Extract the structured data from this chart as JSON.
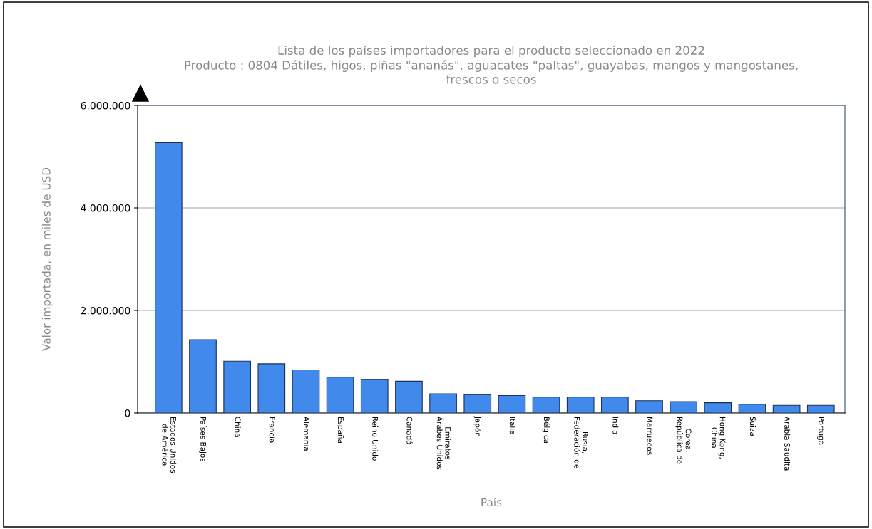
{
  "chart_data": {
    "type": "bar",
    "title": "Lista de los países importadores para el producto seleccionado en 2022\nProducto : 0804 Dátiles, higos, piñas \"ananás\", aguacates \"paltas\", guayabas, mangos y mangostanes,\nfrescos o secos",
    "xlabel": "País",
    "ylabel": "Valor importada, en miles de USD",
    "categories": [
      "Estados Unidos\nde América",
      "Países Bajos",
      "China",
      "Francia",
      "Alemania",
      "España",
      "Reino Unido",
      "Canadá",
      "Emiratos\nÁrabes Unidos",
      "Japón",
      "Italia",
      "Bélgica",
      "Rusia,\nFederación de",
      "India",
      "Marruecos",
      "Corea,\nRepública de",
      "Hong Kong,\nChina",
      "Suiza",
      "Arabia Saudita",
      "Portugal"
    ],
    "values": [
      5270000,
      1430000,
      1010000,
      960000,
      840000,
      700000,
      650000,
      620000,
      375000,
      360000,
      340000,
      310000,
      310000,
      310000,
      240000,
      220000,
      200000,
      170000,
      150000,
      150000
    ],
    "color": "#418aec",
    "ylim": [
      0,
      6000000
    ],
    "yticks": [
      {
        "value": 0,
        "label": "0"
      },
      {
        "value": 2000000,
        "label": "2.000.000"
      },
      {
        "value": 4000000,
        "label": "4.000.000"
      },
      {
        "value": 6000000,
        "label": "6.000.000"
      }
    ],
    "grid": "y"
  }
}
